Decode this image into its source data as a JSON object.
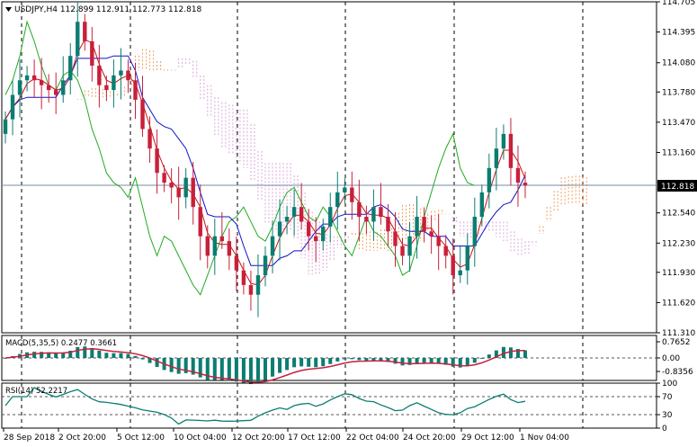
{
  "chart_data": [
    {
      "type": "candlestick",
      "symbol": "USDJPY",
      "timeframe": "H4",
      "header": "USDJPY,H4  112.899 112.911 112.773 112.818",
      "ohlc": {
        "open": 112.899,
        "high": 112.911,
        "low": 112.773,
        "close": 112.818
      },
      "last_price": "112.818",
      "ylim": [
        111.31,
        114.705
      ],
      "y_ticks": [
        "114.705",
        "114.395",
        "114.080",
        "113.780",
        "113.470",
        "113.160",
        "112.818",
        "112.540",
        "112.230",
        "111.930",
        "111.620",
        "111.310"
      ],
      "x_ticks": [
        "28 Sep 2018",
        "2 Oct 20:00",
        "5 Oct 12:00",
        "10 Oct 04:00",
        "12 Oct 20:00",
        "17 Oct 12:00",
        "22 Oct 04:00",
        "24 Oct 20:00",
        "29 Oct 12:00",
        "1 Nov 04:00"
      ],
      "closes": [
        113.5,
        113.75,
        113.9,
        113.95,
        113.9,
        113.85,
        113.8,
        113.75,
        113.9,
        114.15,
        114.5,
        114.3,
        114.05,
        113.85,
        113.8,
        113.95,
        114.0,
        113.9,
        113.7,
        113.4,
        113.2,
        112.95,
        112.85,
        112.8,
        112.7,
        112.9,
        112.6,
        112.3,
        112.1,
        112.3,
        112.25,
        112.1,
        111.95,
        111.8,
        111.7,
        111.9,
        112.1,
        112.3,
        112.45,
        112.5,
        112.6,
        112.45,
        112.3,
        112.25,
        112.4,
        112.6,
        112.75,
        112.8,
        112.65,
        112.5,
        112.45,
        112.6,
        112.5,
        112.35,
        112.2,
        112.1,
        112.3,
        112.5,
        112.35,
        112.3,
        112.2,
        112.1,
        111.9,
        111.95,
        112.2,
        112.5,
        112.75,
        113.0,
        113.2,
        113.35,
        113.0,
        112.85,
        112.82
      ],
      "indicators": [
        "Ichimoku"
      ],
      "colors": {
        "bull": "#0b7d72",
        "bear": "#c8203a",
        "tenkan": "#cc1111",
        "kijun": "#1111cc",
        "chikou": "#22aa22",
        "kumo_up": "#f0a060",
        "kumo_down": "#d9a6d9"
      }
    },
    {
      "type": "histogram",
      "label": "MACD(5,35,5) 0.2477 0.3661",
      "y_ticks": [
        "0.7652",
        "0.00",
        "-0.8356"
      ],
      "ylim": [
        -0.8356,
        0.7652
      ],
      "colors": {
        "bars": "#0b7d72",
        "signal": "#c8203a"
      }
    },
    {
      "type": "line",
      "label": "RSI(14) 52.2217",
      "y_ticks": [
        "100",
        "70",
        "30",
        "0"
      ],
      "ylim": [
        0,
        100
      ],
      "levels": [
        70,
        30
      ],
      "colors": {
        "line": "#0b7d72"
      }
    }
  ]
}
